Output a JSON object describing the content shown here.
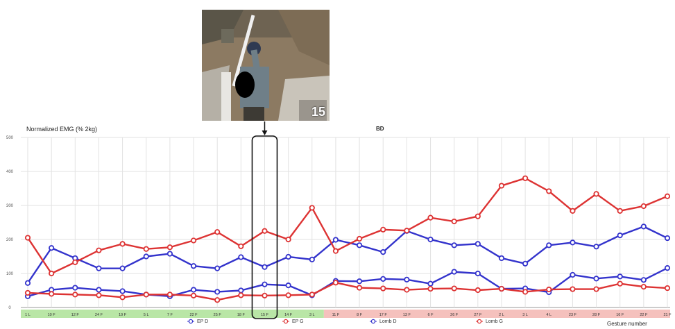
{
  "photo": {
    "label": "15",
    "icon": "worker-digging-photo"
  },
  "chart_data": {
    "type": "line",
    "title": "BD",
    "ylabel": "Normalized EMG (% 2kg)",
    "xlabel": "Gesture number",
    "ylim": [
      0,
      500
    ],
    "yticks": [
      0,
      100,
      200,
      300,
      400,
      500
    ],
    "ytick_labels": [
      "0",
      "100",
      "200",
      "300",
      "400",
      "500"
    ],
    "grid": true,
    "legend_position": "bottom",
    "categories": [
      "1 L",
      "10 F",
      "12 F",
      "24 F",
      "19 F",
      "5 L",
      "7 F",
      "22 F",
      "25 F",
      "18 F",
      "15 F",
      "14 F",
      "3 L",
      "11 F",
      "8 F",
      "17 F",
      "13 F",
      "6 F",
      "26 F",
      "27 F",
      "2 L",
      "3 L",
      "4 L",
      "23 F",
      "28 F",
      "16 F",
      "22 F",
      "21 F"
    ],
    "category_groups": [
      {
        "from": 0,
        "to": 12,
        "color": "#b9e6a6"
      },
      {
        "from": 13,
        "to": 27,
        "color": "#f5c1bd"
      }
    ],
    "highlight_index": 10,
    "series": [
      {
        "name": "EP D",
        "color": "#3333cc",
        "values": [
          72,
          175,
          145,
          115,
          115,
          150,
          158,
          122,
          115,
          148,
          119,
          149,
          141,
          199,
          183,
          163,
          225,
          200,
          183,
          187,
          145,
          129,
          183,
          191,
          179,
          212,
          238,
          204
        ]
      },
      {
        "name": "EP G",
        "color": "#dd3333",
        "values": [
          205,
          100,
          133,
          168,
          187,
          172,
          177,
          197,
          222,
          180,
          225,
          200,
          293,
          166,
          202,
          229,
          226,
          264,
          253,
          268,
          358,
          380,
          342,
          284,
          334,
          284,
          298,
          327
        ]
      },
      {
        "name": "Lomb D",
        "color": "#3333cc",
        "values": [
          33,
          52,
          58,
          52,
          48,
          38,
          33,
          52,
          46,
          50,
          68,
          65,
          36,
          78,
          77,
          84,
          82,
          70,
          105,
          100,
          55,
          56,
          45,
          96,
          85,
          91,
          81,
          116
        ]
      },
      {
        "name": "Lomb G",
        "color": "#dd3333",
        "values": [
          43,
          40,
          38,
          36,
          30,
          38,
          38,
          35,
          22,
          36,
          35,
          36,
          38,
          73,
          58,
          56,
          52,
          55,
          56,
          51,
          55,
          46,
          53,
          54,
          54,
          70,
          61,
          57
        ]
      }
    ]
  }
}
